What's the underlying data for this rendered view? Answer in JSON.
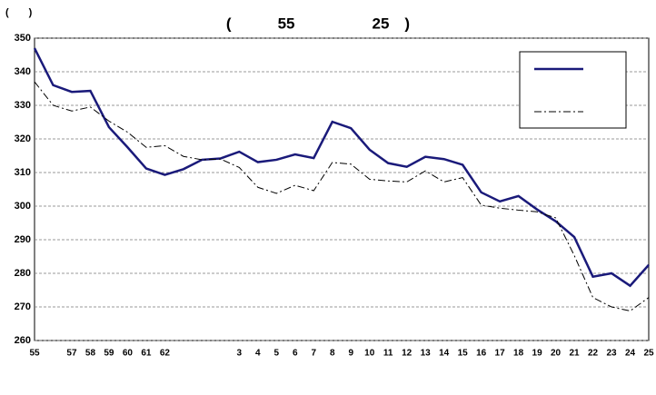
{
  "chart_data": {
    "type": "line",
    "title": "(　　　55　　　　　25　)",
    "y_label": "(　　)",
    "categories": [
      "55",
      null,
      "57",
      "58",
      "59",
      "60",
      "61",
      "62",
      null,
      null,
      null,
      "3",
      "4",
      "5",
      "6",
      "7",
      "8",
      "9",
      "10",
      "11",
      "12",
      "13",
      "14",
      "15",
      "16",
      "17",
      "18",
      "19",
      "20",
      "21",
      "22",
      "23",
      "24",
      "25"
    ],
    "series": [
      {
        "color": "#1a1a7a",
        "dash": "solid",
        "values": [
          347,
          336,
          334,
          334.3,
          323.5,
          317.5,
          311.2,
          309.3,
          311,
          313.8,
          314.2,
          316.2,
          313.1,
          313.8,
          315.4,
          314.3,
          325.1,
          323.2,
          316.8,
          312.8,
          311.7,
          314.7,
          314.0,
          312.3,
          304.1,
          301.4,
          303.0,
          299.0,
          295.5,
          290.8,
          279.0,
          280.0,
          276.3,
          282.5
        ]
      },
      {
        "color": "#000000",
        "dash": "dashdot",
        "values": [
          337,
          330,
          328.3,
          329.5,
          325.3,
          322,
          317.5,
          318,
          314.8,
          313.8,
          314.0,
          311.5,
          305.6,
          303.8,
          306.2,
          304.6,
          313,
          312.5,
          308,
          307.5,
          307.2,
          310.5,
          307.2,
          308.5,
          300.3,
          299.4,
          298.8,
          298.3,
          296.5,
          285.3,
          272.8,
          270,
          268.8,
          272.8
        ]
      }
    ],
    "ylim": [
      260,
      350
    ],
    "yticks": [
      260,
      270,
      280,
      290,
      300,
      310,
      320,
      330,
      340,
      350
    ],
    "grid": true,
    "legend": "upper right"
  }
}
